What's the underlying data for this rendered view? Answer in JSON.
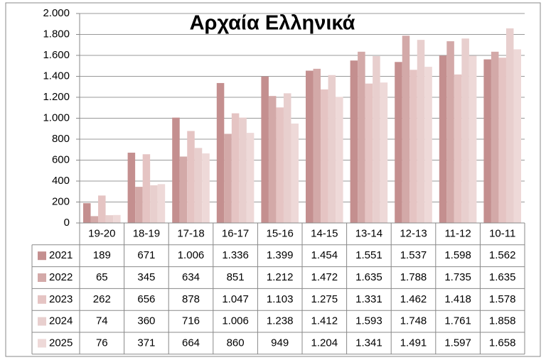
{
  "chart_data": {
    "type": "bar",
    "title": "Αρχαία Ελληνικά",
    "categories": [
      "19-20",
      "18-19",
      "17-18",
      "16-17",
      "15-16",
      "14-15",
      "13-14",
      "12-13",
      "11-12",
      "10-11"
    ],
    "series": [
      {
        "name": "2021",
        "color": "#c48f8f",
        "values": [
          189,
          671,
          1006,
          1336,
          1399,
          1454,
          1551,
          1537,
          1598,
          1562
        ],
        "value_labels": [
          "189",
          "671",
          "1.006",
          "1.336",
          "1.399",
          "1.454",
          "1.551",
          "1.537",
          "1.598",
          "1.562"
        ]
      },
      {
        "name": "2022",
        "color": "#d3a9a8",
        "values": [
          65,
          345,
          634,
          851,
          1212,
          1472,
          1635,
          1788,
          1735,
          1635
        ],
        "value_labels": [
          "65",
          "345",
          "634",
          "851",
          "1.212",
          "1.472",
          "1.635",
          "1.788",
          "1.735",
          "1.635"
        ]
      },
      {
        "name": "2023",
        "color": "#e5c4c3",
        "values": [
          262,
          656,
          878,
          1047,
          1103,
          1275,
          1331,
          1462,
          1418,
          1578
        ],
        "value_labels": [
          "262",
          "656",
          "878",
          "1.047",
          "1.103",
          "1.275",
          "1.331",
          "1.462",
          "1.418",
          "1.578"
        ]
      },
      {
        "name": "2024",
        "color": "#e8cfce",
        "values": [
          74,
          360,
          716,
          1006,
          1238,
          1412,
          1593,
          1748,
          1761,
          1858
        ],
        "value_labels": [
          "74",
          "360",
          "716",
          "1.006",
          "1.238",
          "1.412",
          "1.593",
          "1.748",
          "1.761",
          "1.858"
        ]
      },
      {
        "name": "2025",
        "color": "#eed9d8",
        "values": [
          76,
          371,
          664,
          860,
          949,
          1204,
          1341,
          1491,
          1597,
          1658
        ],
        "value_labels": [
          "76",
          "371",
          "664",
          "860",
          "949",
          "1.204",
          "1.341",
          "1.491",
          "1.597",
          "1.658"
        ]
      }
    ],
    "ylim": [
      0,
      2000
    ],
    "yticks": [
      0,
      200,
      400,
      600,
      800,
      {
        "value": 1000,
        "label": "1.000"
      },
      {
        "value": 1200,
        "label": "1.200"
      },
      {
        "value": 1400,
        "label": "1.400"
      },
      {
        "value": 1600,
        "label": "1.600"
      },
      {
        "value": 1800,
        "label": "1.800"
      },
      {
        "value": 2000,
        "label": "2.000"
      }
    ],
    "grid": true
  }
}
